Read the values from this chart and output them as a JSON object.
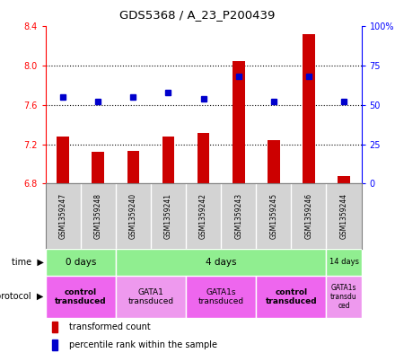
{
  "title": "GDS5368 / A_23_P200439",
  "samples": [
    "GSM1359247",
    "GSM1359248",
    "GSM1359240",
    "GSM1359241",
    "GSM1359242",
    "GSM1359243",
    "GSM1359245",
    "GSM1359246",
    "GSM1359244"
  ],
  "red_values": [
    7.28,
    7.12,
    7.13,
    7.28,
    7.32,
    8.05,
    7.24,
    8.32,
    6.88
  ],
  "blue_values": [
    55,
    52,
    55,
    58,
    54,
    68,
    52,
    68,
    52
  ],
  "ylim_left": [
    6.8,
    8.4
  ],
  "ylim_right": [
    0,
    100
  ],
  "yticks_left": [
    6.8,
    7.2,
    7.6,
    8.0,
    8.4
  ],
  "ytick_labels_right": [
    "0",
    "25",
    "50",
    "75",
    "100%"
  ],
  "bar_color": "#CC0000",
  "dot_color": "#0000CC",
  "sample_bg": "#D3D3D3",
  "time_color": "#90EE90",
  "time_groups": [
    {
      "label": "0 days",
      "start": 0,
      "end": 2
    },
    {
      "label": "4 days",
      "start": 2,
      "end": 8
    },
    {
      "label": "14 days",
      "start": 8,
      "end": 9
    }
  ],
  "protocol_groups": [
    {
      "label": "control\ntransduced",
      "start": 0,
      "end": 2,
      "color": "#EE66EE",
      "bold": true
    },
    {
      "label": "GATA1\ntransduced",
      "start": 2,
      "end": 4,
      "color": "#EE99EE",
      "bold": false
    },
    {
      "label": "GATA1s\ntransduced",
      "start": 4,
      "end": 6,
      "color": "#EE66EE",
      "bold": false
    },
    {
      "label": "control\ntransduced",
      "start": 6,
      "end": 8,
      "color": "#EE66EE",
      "bold": true
    },
    {
      "label": "GATA1s\ntransdu\nced",
      "start": 8,
      "end": 9,
      "color": "#EE99EE",
      "bold": false
    }
  ],
  "bar_width": 0.35
}
